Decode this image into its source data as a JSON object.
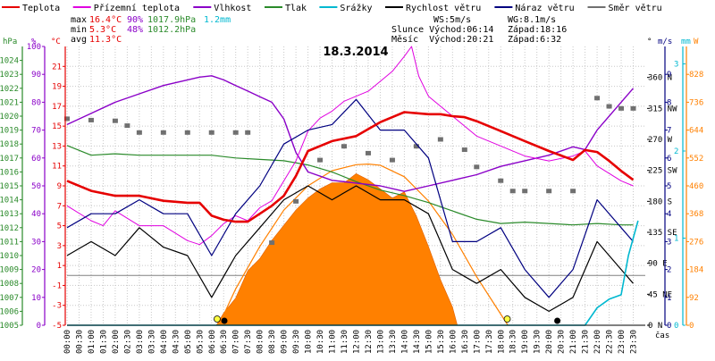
{
  "legend": [
    {
      "label": "Teplota",
      "color": "#e60000"
    },
    {
      "label": "Přízemní teplota",
      "color": "#e000e0"
    },
    {
      "label": "Vlhkost",
      "color": "#8a00c8"
    },
    {
      "label": "Tlak",
      "color": "#2a8a2a"
    },
    {
      "label": "Srážky",
      "color": "#00b8d0"
    },
    {
      "label": "Rychlost větru",
      "color": "#000000"
    },
    {
      "label": "Náraz větru",
      "color": "#000080"
    },
    {
      "label": "Směr větru",
      "color": "#707070"
    }
  ],
  "stats": {
    "max_label": "max",
    "max_temp": "16.4°C",
    "max_hum": "90%",
    "max_press": "1017.9hPa",
    "max_rain": "1.2mm",
    "min_label": "min",
    "min_temp": "5.3°C",
    "min_hum": "48%",
    "min_press": "1012.2hPa",
    "avg_label": "avg",
    "avg_temp": "11.3°C",
    "ws": "WS:5m/s",
    "wg": "WG:8.1m/s",
    "sun_rise": "Slunce Východ:06:14",
    "sun_set": "Západ:18:16",
    "moon_rise": "Měsíc  Východ:20:21",
    "moon_set": "Západ:6:32"
  },
  "chart_data": {
    "type": "line",
    "title": "18.3.2014",
    "xlabel": "čas",
    "axes": {
      "hPa": {
        "label": "hPa",
        "color": "#2a8a2a",
        "ticks": [
          1005,
          1006,
          1007,
          1008,
          1009,
          1010,
          1011,
          1012,
          1013,
          1014,
          1015,
          1016,
          1017,
          1018,
          1019,
          1020,
          1021,
          1022,
          1023,
          1024
        ],
        "range": [
          1005,
          1025
        ]
      },
      "pct": {
        "label": "%",
        "color": "#8a00c8",
        "ticks": [
          0,
          10,
          20,
          30,
          40,
          50,
          60,
          70,
          80,
          90,
          100
        ],
        "range": [
          0,
          100
        ]
      },
      "degC": {
        "label": "°C",
        "color": "#e60000",
        "ticks": [
          -5,
          -3,
          -1,
          1,
          3,
          5,
          7,
          9,
          11,
          13,
          15,
          17,
          19,
          21
        ],
        "range": [
          -5,
          23
        ]
      },
      "deg": {
        "label": "°",
        "color": "#000000",
        "ticks": [
          {
            "v": 0,
            "t": "0 N"
          },
          {
            "v": 45,
            "t": "45 NE"
          },
          {
            "v": 90,
            "t": "90 E"
          },
          {
            "v": 135,
            "t": "135 SE"
          },
          {
            "v": 180,
            "t": "180 S"
          },
          {
            "v": 225,
            "t": "225 SW"
          },
          {
            "v": 270,
            "t": "270 W"
          },
          {
            "v": 315,
            "t": "315 NW"
          },
          {
            "v": 360,
            "t": "360 N"
          }
        ],
        "range": [
          0,
          405
        ]
      },
      "ms": {
        "label": "m/s",
        "color": "#000080",
        "ticks": [
          0,
          1,
          2,
          3,
          4,
          5,
          6,
          7,
          8,
          9
        ],
        "range": [
          0,
          10
        ]
      },
      "mm": {
        "label": "mm",
        "color": "#00b8d0",
        "ticks": [
          0,
          1,
          2,
          3
        ],
        "range": [
          0,
          3.2
        ]
      },
      "W": {
        "label": "W",
        "color": "#ff8000",
        "ticks": [
          0,
          92,
          184,
          276,
          368,
          460,
          552,
          644,
          736,
          828
        ],
        "range": [
          0,
          920
        ]
      }
    },
    "x_ticks": [
      "00:00",
      "00:30",
      "01:00",
      "01:30",
      "02:00",
      "02:30",
      "03:00",
      "03:30",
      "04:00",
      "04:30",
      "05:00",
      "05:30",
      "06:00",
      "06:30",
      "07:00",
      "07:30",
      "08:00",
      "08:30",
      "09:00",
      "09:30",
      "10:00",
      "10:30",
      "11:00",
      "11:30",
      "12:00",
      "12:30",
      "13:00",
      "13:30",
      "14:00",
      "14:30",
      "15:00",
      "15:30",
      "16:00",
      "16:30",
      "17:00",
      "17:30",
      "18:00",
      "18:30",
      "19:00",
      "19:30",
      "20:00",
      "20:30",
      "21:00",
      "21:30",
      "22:00",
      "22:30",
      "23:00",
      "23:30"
    ],
    "series": {
      "temperature": {
        "x": [
          0,
          1,
          2,
          3,
          4,
          5,
          5.5,
          6,
          6.5,
          7,
          7.5,
          8,
          8.5,
          9,
          9.5,
          10,
          11,
          12,
          13,
          14,
          15,
          15.5,
          16,
          16.5,
          17,
          18,
          19,
          20,
          21,
          21.5,
          22,
          22.5,
          23,
          23.5
        ],
        "y": [
          9.5,
          8.5,
          8,
          8,
          7.5,
          7.3,
          7.3,
          6.0,
          5.6,
          5.4,
          5.4,
          6.2,
          7,
          8,
          10,
          12.5,
          13.5,
          14,
          15.4,
          16.4,
          16.2,
          16.2,
          16,
          15.9,
          15.5,
          14.5,
          13.5,
          12.5,
          11.6,
          12.6,
          12.4,
          11.5,
          10.5,
          9.6
        ]
      },
      "ground_temperature": {
        "x": [
          0,
          1,
          1.5,
          2,
          3,
          4,
          5,
          5.5,
          6,
          6.5,
          7,
          7.5,
          8,
          8.5,
          9,
          9.5,
          10,
          10.5,
          11,
          11.5,
          12,
          12.5,
          13,
          13.5,
          14,
          14.3,
          14.6,
          15,
          16,
          17,
          18,
          19,
          20,
          21,
          21.5,
          22,
          23,
          23.5
        ],
        "y": [
          7,
          5.5,
          5,
          6.5,
          5,
          5,
          3.5,
          3.1,
          4,
          5.2,
          6,
          5.5,
          6.8,
          7.5,
          9.5,
          11.5,
          14.5,
          15.8,
          16.5,
          17.5,
          18,
          18.5,
          19.5,
          20.5,
          22,
          23,
          20,
          18,
          16,
          14,
          13,
          12,
          11.5,
          12,
          12.5,
          11,
          9.5,
          9
        ]
      },
      "humidity": {
        "x": [
          0,
          1,
          2,
          3,
          4,
          5,
          5.5,
          6,
          6.5,
          7,
          7.5,
          8,
          8.5,
          9,
          9.5,
          10,
          11,
          12,
          13,
          14,
          15,
          16,
          17,
          18,
          19,
          20,
          21,
          21.5,
          22,
          23,
          23.5
        ],
        "y": [
          72,
          76,
          80,
          83,
          86,
          88,
          89,
          89.5,
          88,
          86,
          84,
          82,
          80,
          74,
          62,
          55,
          52,
          51,
          50,
          48,
          50,
          52,
          54,
          57,
          59,
          61,
          64,
          63,
          70,
          80,
          85
        ]
      },
      "pressure": {
        "x": [
          0,
          1,
          2,
          3,
          4,
          5,
          6,
          7,
          8,
          9,
          10,
          11,
          12,
          13,
          14,
          15,
          16,
          17,
          18,
          19,
          20,
          21,
          22,
          23,
          23.5
        ],
        "y": [
          1017.9,
          1017.2,
          1017.3,
          1017.2,
          1017.2,
          1017.2,
          1017.2,
          1017.0,
          1016.9,
          1016.8,
          1016.5,
          1016.0,
          1015.3,
          1014.7,
          1014.3,
          1013.8,
          1013.2,
          1012.6,
          1012.3,
          1012.4,
          1012.3,
          1012.2,
          1012.3,
          1012.2,
          1012.2
        ]
      },
      "rain_total": {
        "x": [
          0,
          21.5,
          22,
          22.5,
          23,
          23.3,
          23.7
        ],
        "y": [
          0,
          0,
          0.2,
          0.3,
          0.35,
          0.8,
          1.2
        ]
      },
      "wind_speed": {
        "x": [
          0,
          1,
          2,
          3,
          4,
          5,
          6,
          7,
          8,
          9,
          10,
          11,
          12,
          13,
          14,
          15,
          16,
          17,
          18,
          19,
          20,
          21,
          22,
          23,
          23.5
        ],
        "y": [
          2.5,
          3,
          2.5,
          3.5,
          2.8,
          2.5,
          1,
          2.5,
          3.5,
          4.5,
          5,
          4.5,
          5,
          4.5,
          4.5,
          4,
          2,
          1.5,
          2,
          1,
          0.5,
          1,
          3,
          2,
          1.5
        ]
      },
      "wind_gust": {
        "x": [
          0,
          1,
          2,
          3,
          4,
          5,
          6,
          7,
          8,
          9,
          10,
          11,
          12,
          13,
          14,
          15,
          16,
          17,
          18,
          19,
          20,
          21,
          22,
          23,
          23.5
        ],
        "y": [
          3.5,
          4,
          4,
          4.5,
          4,
          4,
          2.5,
          4,
          5,
          6.5,
          7,
          7.2,
          8.1,
          7,
          7,
          6,
          3,
          3,
          3.5,
          2,
          1,
          2,
          4.5,
          3.5,
          3
        ]
      },
      "wind_direction": {
        "x": [
          0,
          1,
          2,
          2.5,
          3,
          4,
          5,
          6,
          7,
          7.5,
          8.5,
          9.5,
          10.5,
          11.5,
          12.5,
          13.5,
          14.5,
          15.5,
          16.5,
          17,
          18,
          18.5,
          19,
          20,
          21,
          22,
          22.5,
          23,
          23.5
        ],
        "y": [
          300,
          298,
          297,
          290,
          280,
          280,
          280,
          280,
          280,
          280,
          120,
          180,
          240,
          260,
          250,
          240,
          260,
          270,
          255,
          230,
          210,
          195,
          195,
          195,
          195,
          330,
          318,
          315,
          315
        ]
      },
      "solar_radiation": {
        "x": [
          0,
          6.2,
          6.5,
          7,
          7.5,
          8,
          8.5,
          9,
          9.5,
          10,
          10.5,
          11,
          11.5,
          12,
          12.5,
          13,
          13.5,
          14,
          14.5,
          15,
          15.5,
          16,
          16.2,
          24
        ],
        "y": [
          0,
          0,
          40,
          90,
          180,
          220,
          280,
          330,
          380,
          420,
          450,
          470,
          470,
          500,
          480,
          450,
          420,
          440,
          360,
          260,
          150,
          60,
          0,
          0
        ]
      },
      "solar_max": {
        "x": [
          6.3,
          7,
          8,
          9,
          10,
          11,
          12,
          12.5,
          13,
          14,
          15,
          16,
          17,
          18.3
        ],
        "y": [
          0,
          120,
          260,
          380,
          460,
          510,
          530,
          532,
          528,
          490,
          410,
          300,
          160,
          0
        ]
      }
    },
    "grid": "vertical + horizontal dashed",
    "legend": "top"
  }
}
